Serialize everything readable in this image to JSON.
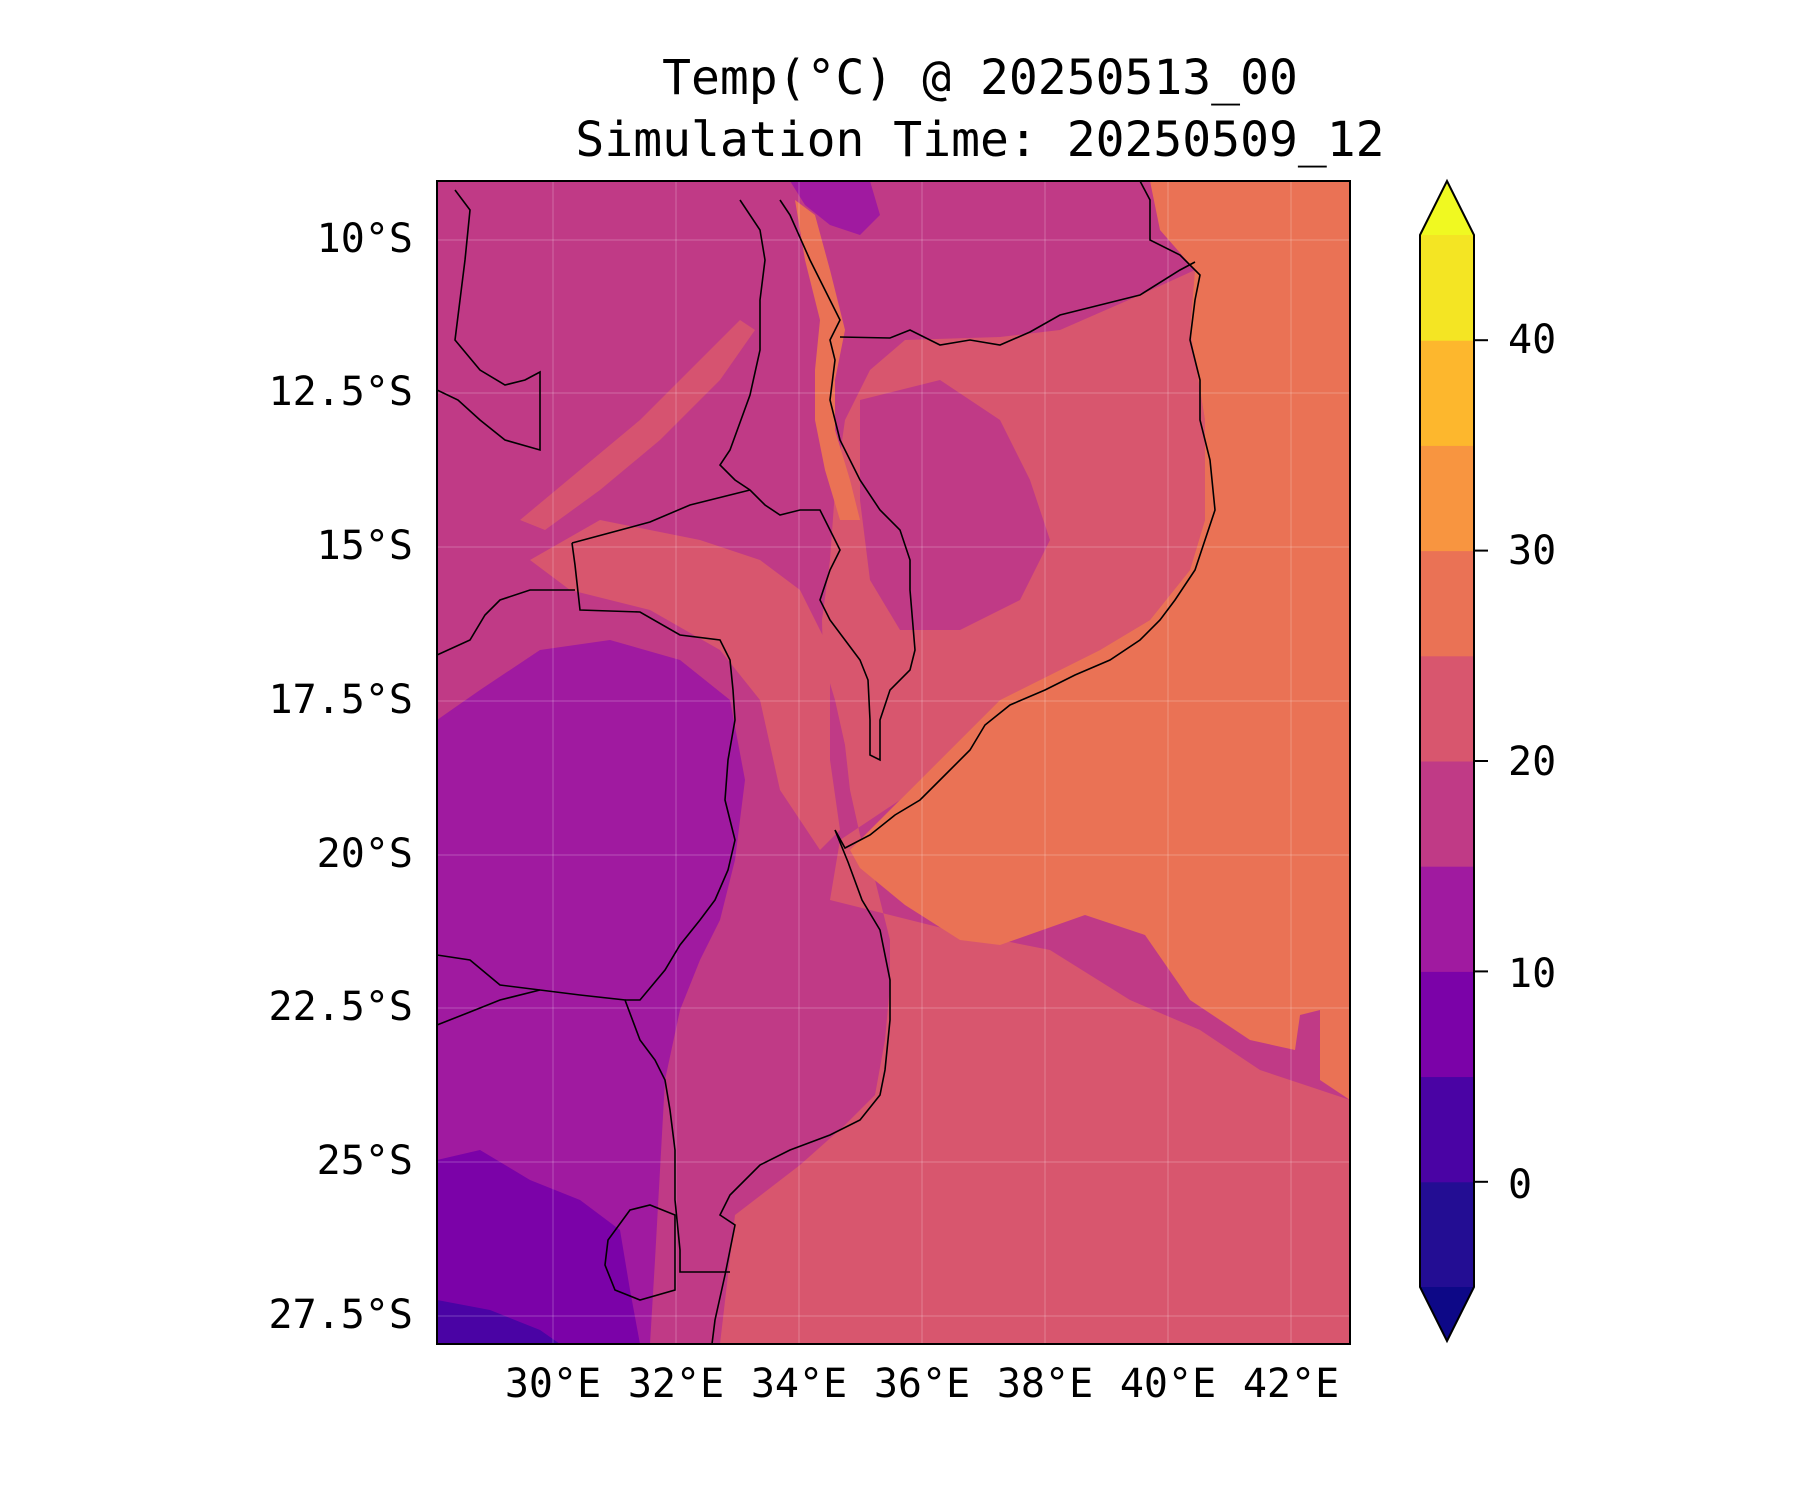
{
  "map": {
    "title_line1": "Temp(°C) @ 20250513_00",
    "title_line2": "Simulation Time: 20250509_12",
    "lat_ticks": [
      "10°S",
      "12.5°S",
      "15°S",
      "17.5°S",
      "20°S",
      "22.5°S",
      "25°S",
      "27.5°S"
    ],
    "lon_ticks": [
      "30°E",
      "32°E",
      "34°E",
      "36°E",
      "38°E",
      "40°E",
      "42°E"
    ],
    "extent": {
      "lon_min": 28.1,
      "lon_max": 43.0,
      "lat_min": -28.5,
      "lat_max": -9.5
    },
    "variable": "Temperature",
    "units": "°C",
    "colorbar": {
      "ticks": [
        "0",
        "10",
        "20",
        "30",
        "40"
      ],
      "levels": [
        -5,
        0,
        5,
        10,
        15,
        20,
        25,
        30,
        35,
        40,
        45
      ],
      "colors": [
        "#230d93",
        "#4a03a4",
        "#7b02a8",
        "#a01aa0",
        "#c03a86",
        "#d8566e",
        "#ea7255",
        "#f89540",
        "#fdb72d",
        "#f4e523"
      ],
      "extend_low_color": "#0d0887",
      "extend_high_color": "#f0f921"
    },
    "colors": {
      "ocean_north": "#ea7255",
      "ocean_south": "#d8566e",
      "highland": "#a01aa0",
      "cold_highland": "#7b02a8",
      "warm_land": "#c03a86",
      "border": "#000000"
    }
  }
}
